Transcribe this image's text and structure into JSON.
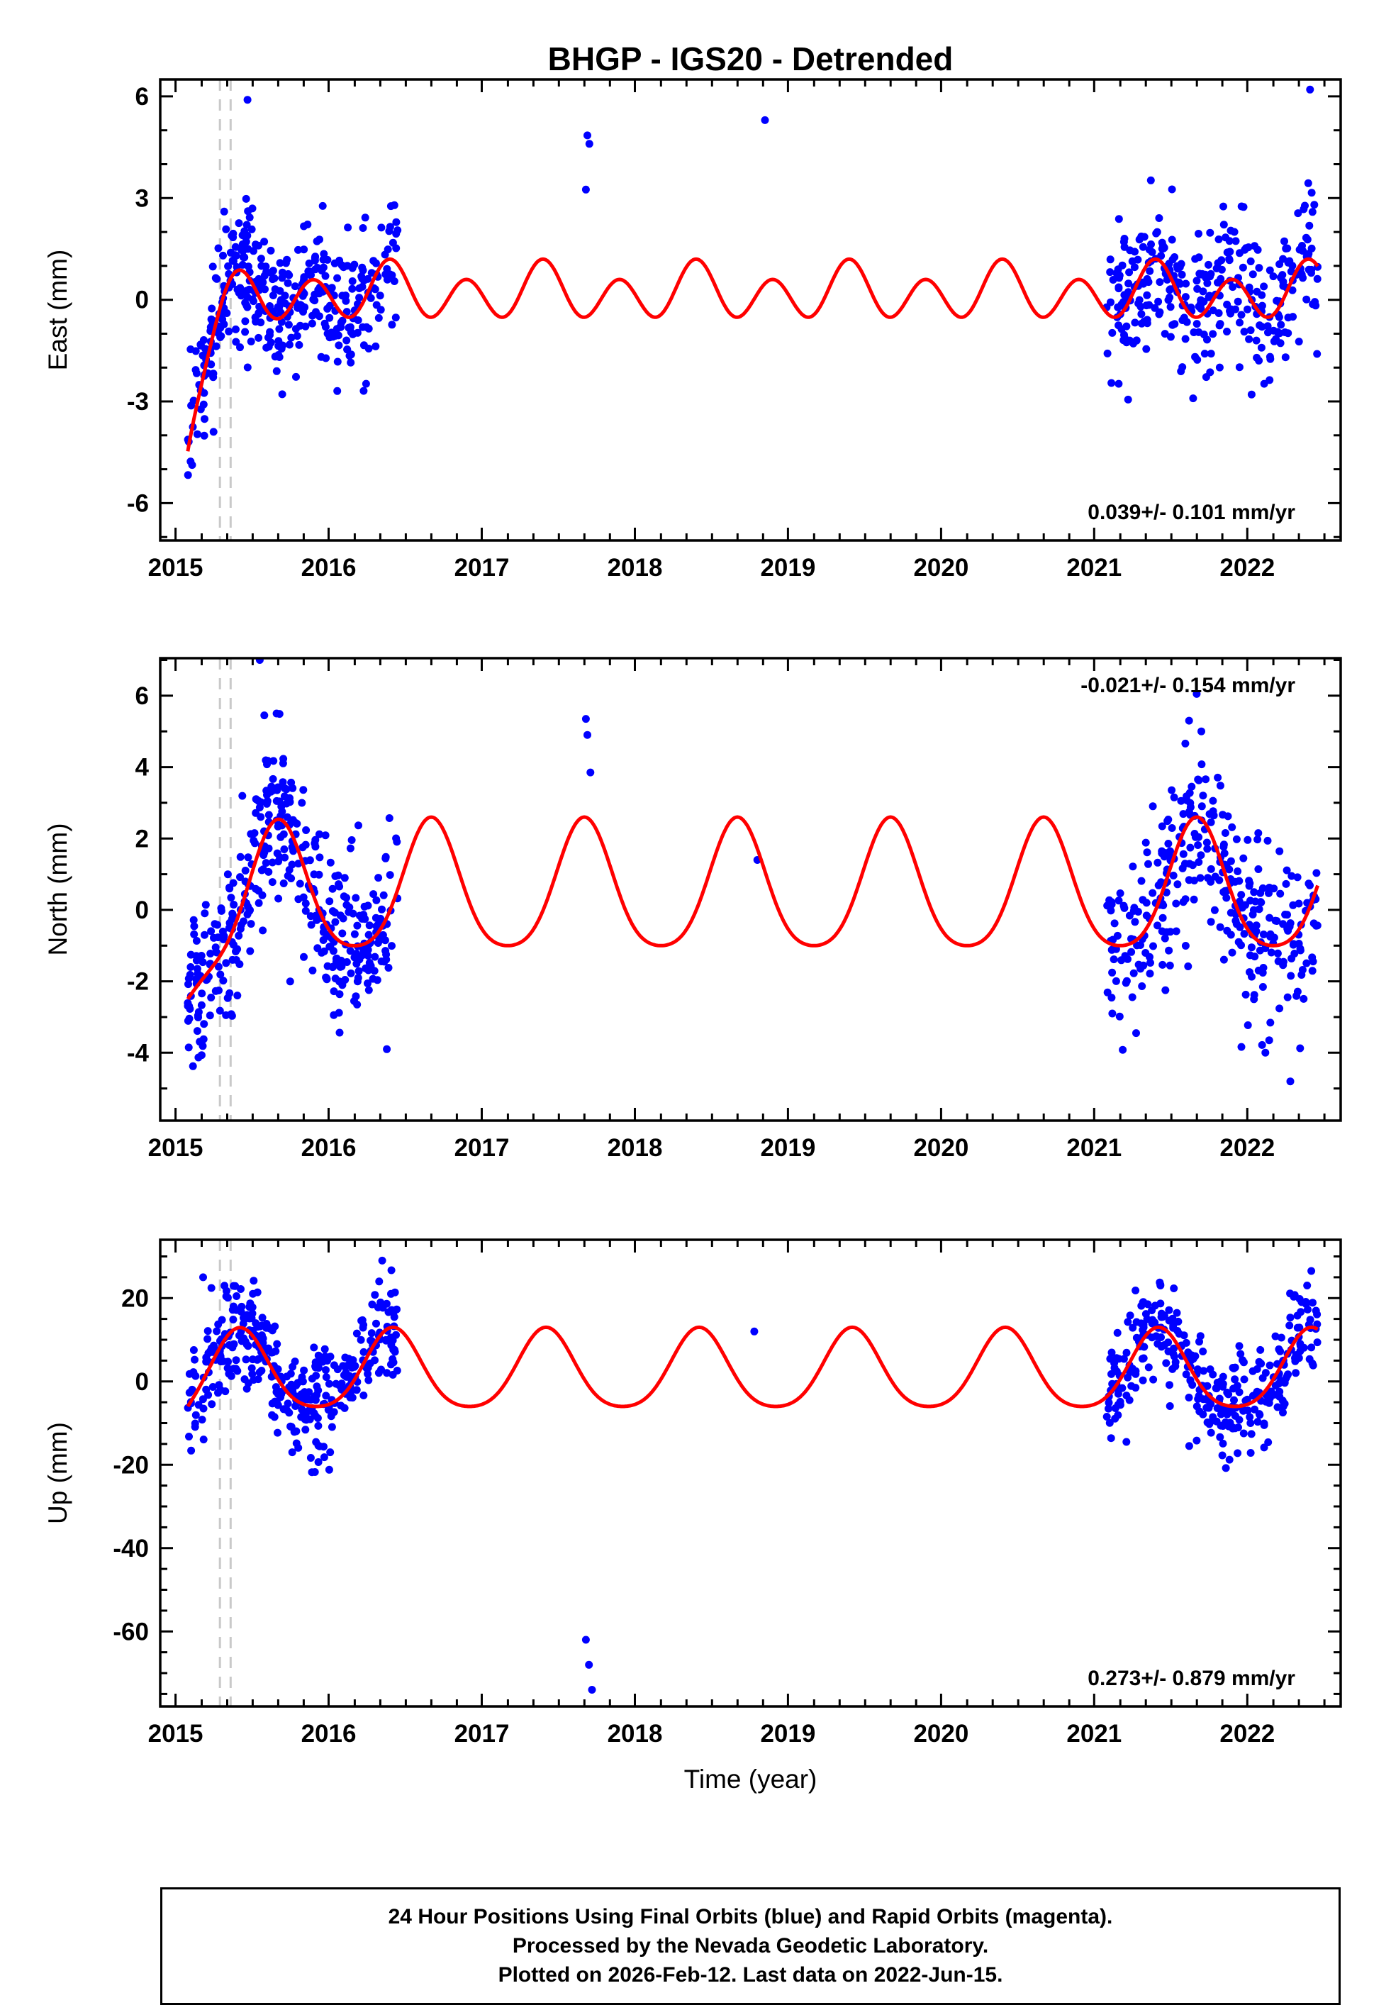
{
  "title": "BHGP - IGS20 - Detrended",
  "xlabel": "Time (year)",
  "footer": {
    "line1": "24 Hour Positions Using Final Orbits (blue) and Rapid Orbits (magenta).",
    "line2": "Processed by the Nevada Geodetic Laboratory.",
    "line3": "Plotted on 2026-Feb-12. Last data on 2022-Jun-15."
  },
  "colors": {
    "points": "#0000ff",
    "curve": "#ff0000",
    "event_line": "#c9c9c9",
    "frame": "#000000"
  },
  "x_axis": {
    "min": 2014.9,
    "max": 2022.61,
    "ticks": [
      2015,
      2016,
      2017,
      2018,
      2019,
      2020,
      2021,
      2022
    ],
    "minor_step": 0.166667
  },
  "event_lines": [
    2015.29,
    2015.36
  ],
  "chart_data": [
    {
      "id": "east",
      "type": "scatter+line",
      "ylabel": "East (mm)",
      "ylim": [
        -7.1,
        6.5
      ],
      "yticks": [
        -6,
        -3,
        0,
        3,
        6
      ],
      "y_minor_step": 1,
      "annotation": {
        "text": "0.039+/- 0.101 mm/yr",
        "corner": "bottom-right"
      },
      "model": {
        "mean": 0.2,
        "harmonics": [
          {
            "period": 1,
            "amp": 0.3,
            "phase": 0.4
          },
          {
            "period": 0.5,
            "amp": 0.7,
            "phase": 0.4
          }
        ],
        "transient": {
          "t0": 2015.02,
          "amp": -6.5,
          "tau": 0.13
        },
        "t_start": 2015.08,
        "t_end": 2022.46
      },
      "clusters": [
        {
          "t0": 2015.08,
          "t1": 2016.45,
          "n": 380,
          "sigma": 1.0,
          "seed": 101
        },
        {
          "t0": 2021.08,
          "t1": 2022.46,
          "n": 330,
          "sigma": 1.05,
          "seed": 102
        }
      ],
      "isolated": [
        [
          2015.47,
          5.9
        ],
        [
          2017.68,
          3.25
        ],
        [
          2017.69,
          4.85
        ],
        [
          2017.703,
          4.6
        ],
        [
          2018.85,
          5.3
        ],
        [
          2022.41,
          6.2
        ]
      ]
    },
    {
      "id": "north",
      "type": "scatter+line",
      "ylabel": "North (mm)",
      "ylim": [
        -5.9,
        7.05
      ],
      "yticks": [
        -4,
        -2,
        0,
        2,
        4,
        6
      ],
      "y_minor_step": 1,
      "annotation": {
        "text": "-0.021+/- 0.154 mm/yr",
        "corner": "top-right"
      },
      "model": {
        "mean": 0.5,
        "harmonics": [
          {
            "period": 1,
            "amp": 1.8,
            "phase": 0.67
          },
          {
            "period": 0.5,
            "amp": 0.3,
            "phase": 0.67
          }
        ],
        "transient": {
          "t0": 2015.0,
          "amp": -2.5,
          "tau": 0.18
        },
        "t_start": 2015.08,
        "t_end": 2022.46
      },
      "clusters": [
        {
          "t0": 2015.08,
          "t1": 2016.45,
          "n": 380,
          "sigma": 1.15,
          "seed": 201
        },
        {
          "t0": 2021.08,
          "t1": 2022.46,
          "n": 330,
          "sigma": 1.25,
          "seed": 202
        }
      ],
      "isolated": [
        [
          2015.55,
          7.0
        ],
        [
          2015.58,
          5.45
        ],
        [
          2015.66,
          5.5
        ],
        [
          2016.38,
          -3.9
        ],
        [
          2017.68,
          5.35
        ],
        [
          2017.69,
          4.9
        ],
        [
          2017.71,
          3.85
        ],
        [
          2018.8,
          1.4
        ],
        [
          2021.62,
          5.3
        ],
        [
          2021.7,
          5.0
        ]
      ]
    },
    {
      "id": "up",
      "type": "scatter+line",
      "ylabel": "Up (mm)",
      "ylim": [
        -78,
        34
      ],
      "yticks": [
        -60,
        -40,
        -20,
        0,
        20
      ],
      "y_minor_step": 5,
      "annotation": {
        "text": "0.273+/- 0.879 mm/yr",
        "corner": "bottom-right"
      },
      "model": {
        "mean": 2.0,
        "harmonics": [
          {
            "period": 1,
            "amp": 9.5,
            "phase": 0.42
          },
          {
            "period": 0.5,
            "amp": 1.5,
            "phase": 0.42
          }
        ],
        "transient": {
          "t0": 2015.0,
          "amp": -5.0,
          "tau": 0.1
        },
        "t_start": 2015.08,
        "t_end": 2022.46
      },
      "clusters": [
        {
          "t0": 2015.08,
          "t1": 2016.45,
          "n": 380,
          "sigma": 6.5,
          "seed": 301
        },
        {
          "t0": 2021.08,
          "t1": 2022.46,
          "n": 330,
          "sigma": 6.0,
          "seed": 302
        }
      ],
      "isolated": [
        [
          2015.18,
          25
        ],
        [
          2016.33,
          24
        ],
        [
          2016.35,
          29
        ],
        [
          2017.68,
          -62
        ],
        [
          2017.7,
          -68
        ],
        [
          2017.72,
          -74
        ],
        [
          2018.78,
          12
        ]
      ]
    }
  ]
}
